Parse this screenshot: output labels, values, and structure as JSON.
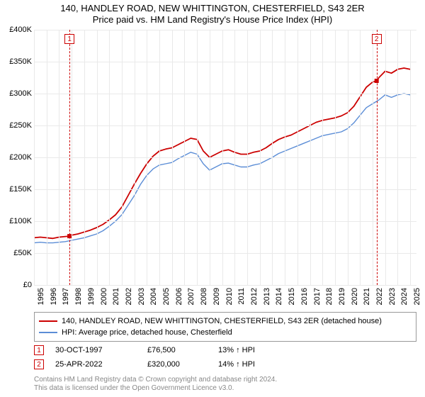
{
  "title_line1": "140, HANDLEY ROAD, NEW WHITTINGTON, CHESTERFIELD, S43 2ER",
  "title_line2": "Price paid vs. HM Land Registry's House Price Index (HPI)",
  "chart": {
    "type": "line",
    "background_color": "#ffffff",
    "grid_color": "#e9e9e9",
    "axis_fontsize": 11,
    "x_min_year": 1995.0,
    "x_max_year": 2025.5,
    "y_min": 0,
    "y_max": 400000,
    "y_tick_step": 50000,
    "y_tick_labels": [
      "£0",
      "£50K",
      "£100K",
      "£150K",
      "£200K",
      "£250K",
      "£300K",
      "£350K",
      "£400K"
    ],
    "x_tick_years": [
      1995,
      1996,
      1997,
      1998,
      1999,
      2000,
      2001,
      2002,
      2003,
      2004,
      2005,
      2006,
      2007,
      2008,
      2009,
      2010,
      2011,
      2012,
      2013,
      2014,
      2015,
      2016,
      2017,
      2018,
      2019,
      2020,
      2021,
      2022,
      2023,
      2024,
      2025
    ],
    "markers": [
      {
        "label": "1",
        "year": 1997.83,
        "color": "#cc0000"
      },
      {
        "label": "2",
        "year": 2022.32,
        "color": "#cc0000"
      }
    ],
    "marker_line_color": "#cc0000",
    "series": [
      {
        "name": "property",
        "color": "#cc0000",
        "width": 1.8,
        "legend": "140, HANDLEY ROAD, NEW WHITTINGTON, CHESTERFIELD, S43 2ER (detached house)",
        "data": [
          [
            1995.0,
            74000
          ],
          [
            1995.5,
            75000
          ],
          [
            1996.0,
            74000
          ],
          [
            1996.5,
            73000
          ],
          [
            1997.0,
            75000
          ],
          [
            1997.5,
            76000
          ],
          [
            1997.83,
            76500
          ],
          [
            1998.0,
            78000
          ],
          [
            1998.5,
            80000
          ],
          [
            1999.0,
            83000
          ],
          [
            1999.5,
            86000
          ],
          [
            2000.0,
            90000
          ],
          [
            2000.5,
            95000
          ],
          [
            2001.0,
            102000
          ],
          [
            2001.5,
            110000
          ],
          [
            2002.0,
            122000
          ],
          [
            2002.5,
            140000
          ],
          [
            2003.0,
            158000
          ],
          [
            2003.5,
            175000
          ],
          [
            2004.0,
            190000
          ],
          [
            2004.5,
            202000
          ],
          [
            2005.0,
            210000
          ],
          [
            2005.5,
            213000
          ],
          [
            2006.0,
            215000
          ],
          [
            2006.5,
            220000
          ],
          [
            2007.0,
            225000
          ],
          [
            2007.5,
            230000
          ],
          [
            2008.0,
            228000
          ],
          [
            2008.5,
            210000
          ],
          [
            2009.0,
            200000
          ],
          [
            2009.5,
            205000
          ],
          [
            2010.0,
            210000
          ],
          [
            2010.5,
            212000
          ],
          [
            2011.0,
            208000
          ],
          [
            2011.5,
            205000
          ],
          [
            2012.0,
            205000
          ],
          [
            2012.5,
            208000
          ],
          [
            2013.0,
            210000
          ],
          [
            2013.5,
            215000
          ],
          [
            2014.0,
            222000
          ],
          [
            2014.5,
            228000
          ],
          [
            2015.0,
            232000
          ],
          [
            2015.5,
            235000
          ],
          [
            2016.0,
            240000
          ],
          [
            2016.5,
            245000
          ],
          [
            2017.0,
            250000
          ],
          [
            2017.5,
            255000
          ],
          [
            2018.0,
            258000
          ],
          [
            2018.5,
            260000
          ],
          [
            2019.0,
            262000
          ],
          [
            2019.5,
            265000
          ],
          [
            2020.0,
            270000
          ],
          [
            2020.5,
            280000
          ],
          [
            2021.0,
            295000
          ],
          [
            2021.5,
            310000
          ],
          [
            2022.0,
            318000
          ],
          [
            2022.32,
            320000
          ],
          [
            2022.5,
            325000
          ],
          [
            2023.0,
            335000
          ],
          [
            2023.5,
            332000
          ],
          [
            2024.0,
            338000
          ],
          [
            2024.5,
            340000
          ],
          [
            2025.0,
            338000
          ]
        ],
        "sale_points": [
          {
            "year": 1997.83,
            "value": 76500
          },
          {
            "year": 2022.32,
            "value": 320000
          }
        ]
      },
      {
        "name": "hpi",
        "color": "#5b8dd6",
        "width": 1.4,
        "legend": "HPI: Average price, detached house, Chesterfield",
        "data": [
          [
            1995.0,
            66000
          ],
          [
            1995.5,
            67000
          ],
          [
            1996.0,
            66000
          ],
          [
            1996.5,
            66000
          ],
          [
            1997.0,
            67000
          ],
          [
            1997.5,
            68000
          ],
          [
            1998.0,
            70000
          ],
          [
            1998.5,
            72000
          ],
          [
            1999.0,
            74000
          ],
          [
            1999.5,
            77000
          ],
          [
            2000.0,
            80000
          ],
          [
            2000.5,
            85000
          ],
          [
            2001.0,
            92000
          ],
          [
            2001.5,
            100000
          ],
          [
            2002.0,
            110000
          ],
          [
            2002.5,
            125000
          ],
          [
            2003.0,
            140000
          ],
          [
            2003.5,
            158000
          ],
          [
            2004.0,
            172000
          ],
          [
            2004.5,
            182000
          ],
          [
            2005.0,
            188000
          ],
          [
            2005.5,
            190000
          ],
          [
            2006.0,
            192000
          ],
          [
            2006.5,
            198000
          ],
          [
            2007.0,
            203000
          ],
          [
            2007.5,
            208000
          ],
          [
            2008.0,
            205000
          ],
          [
            2008.5,
            190000
          ],
          [
            2009.0,
            180000
          ],
          [
            2009.5,
            185000
          ],
          [
            2010.0,
            190000
          ],
          [
            2010.5,
            191000
          ],
          [
            2011.0,
            188000
          ],
          [
            2011.5,
            185000
          ],
          [
            2012.0,
            185000
          ],
          [
            2012.5,
            188000
          ],
          [
            2013.0,
            190000
          ],
          [
            2013.5,
            195000
          ],
          [
            2014.0,
            200000
          ],
          [
            2014.5,
            206000
          ],
          [
            2015.0,
            210000
          ],
          [
            2015.5,
            214000
          ],
          [
            2016.0,
            218000
          ],
          [
            2016.5,
            222000
          ],
          [
            2017.0,
            226000
          ],
          [
            2017.5,
            230000
          ],
          [
            2018.0,
            234000
          ],
          [
            2018.5,
            236000
          ],
          [
            2019.0,
            238000
          ],
          [
            2019.5,
            240000
          ],
          [
            2020.0,
            245000
          ],
          [
            2020.5,
            254000
          ],
          [
            2021.0,
            266000
          ],
          [
            2021.5,
            278000
          ],
          [
            2022.0,
            284000
          ],
          [
            2022.5,
            290000
          ],
          [
            2023.0,
            298000
          ],
          [
            2023.5,
            294000
          ],
          [
            2024.0,
            298000
          ],
          [
            2024.5,
            300000
          ],
          [
            2025.0,
            298000
          ]
        ]
      }
    ]
  },
  "sales": [
    {
      "label": "1",
      "color": "#cc0000",
      "date": "30-OCT-1997",
      "price": "£76,500",
      "diff": "13% ↑ HPI"
    },
    {
      "label": "2",
      "color": "#cc0000",
      "date": "25-APR-2022",
      "price": "£320,000",
      "diff": "14% ↑ HPI"
    }
  ],
  "footer_line1": "Contains HM Land Registry data © Crown copyright and database right 2024.",
  "footer_line2": "This data is licensed under the Open Government Licence v3.0."
}
